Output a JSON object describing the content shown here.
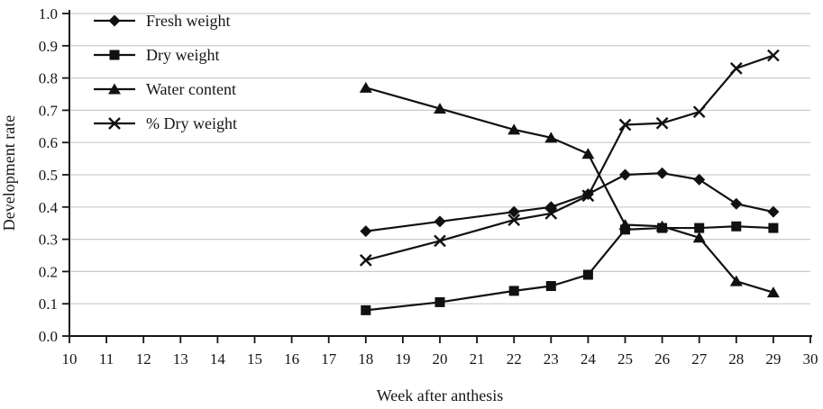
{
  "figure": {
    "background": "#ffffff",
    "axis_color": "#161616",
    "line_color": "#111111",
    "grid_color": "#c9cccc"
  },
  "chart_data": {
    "type": "line",
    "title": "",
    "xlabel": "Week after anthesis",
    "ylabel": "Development rate",
    "xlim": [
      10,
      30
    ],
    "ylim": [
      0.0,
      1.0
    ],
    "x_ticks": [
      10,
      11,
      12,
      13,
      14,
      15,
      16,
      17,
      18,
      19,
      20,
      21,
      22,
      23,
      24,
      25,
      26,
      27,
      28,
      29,
      30
    ],
    "y_ticks": [
      0.0,
      0.1,
      0.2,
      0.3,
      0.4,
      0.5,
      0.6,
      0.7,
      0.8,
      0.9,
      1.0
    ],
    "grid": "horizontal",
    "legend_position": "top-left",
    "x": [
      18,
      20,
      22,
      23,
      24,
      25,
      26,
      27,
      28,
      29
    ],
    "series": [
      {
        "name": "Fresh weight",
        "marker": "diamond",
        "values": [
          0.325,
          0.355,
          0.385,
          0.4,
          0.44,
          0.5,
          0.505,
          0.485,
          0.41,
          0.385
        ]
      },
      {
        "name": "Dry weight",
        "marker": "square",
        "values": [
          0.08,
          0.105,
          0.14,
          0.155,
          0.19,
          0.33,
          0.335,
          0.335,
          0.34,
          0.335
        ]
      },
      {
        "name": "Water content",
        "marker": "triangle",
        "values": [
          0.77,
          0.705,
          0.64,
          0.615,
          0.565,
          0.345,
          0.34,
          0.305,
          0.17,
          0.135
        ]
      },
      {
        "name": "% Dry weight",
        "marker": "x-cross",
        "values": [
          0.235,
          0.295,
          0.36,
          0.38,
          0.435,
          0.655,
          0.66,
          0.695,
          0.83,
          0.87
        ]
      }
    ]
  }
}
